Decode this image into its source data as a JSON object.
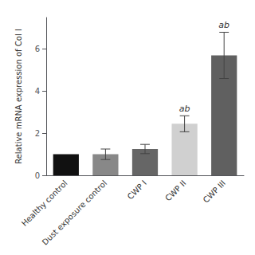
{
  "chart_data": {
    "type": "bar",
    "categories": [
      "Healthy control",
      "Dust exposure control",
      "CWP I",
      "CWP II",
      "CWP III"
    ],
    "values": [
      1.0,
      1.0,
      1.25,
      2.45,
      5.7
    ],
    "errors": [
      0.0,
      0.25,
      0.22,
      0.38,
      1.1
    ],
    "colors": [
      "#111111",
      "#888888",
      "#666666",
      "#d0d0d0",
      "#606060"
    ],
    "annotations": [
      null,
      null,
      null,
      "ab",
      "ab"
    ],
    "ylabel": "Relative mRNA expression of Col I",
    "ylim": [
      0,
      7.5
    ],
    "yticks": [
      0,
      2,
      4,
      6
    ],
    "grid": false
  }
}
